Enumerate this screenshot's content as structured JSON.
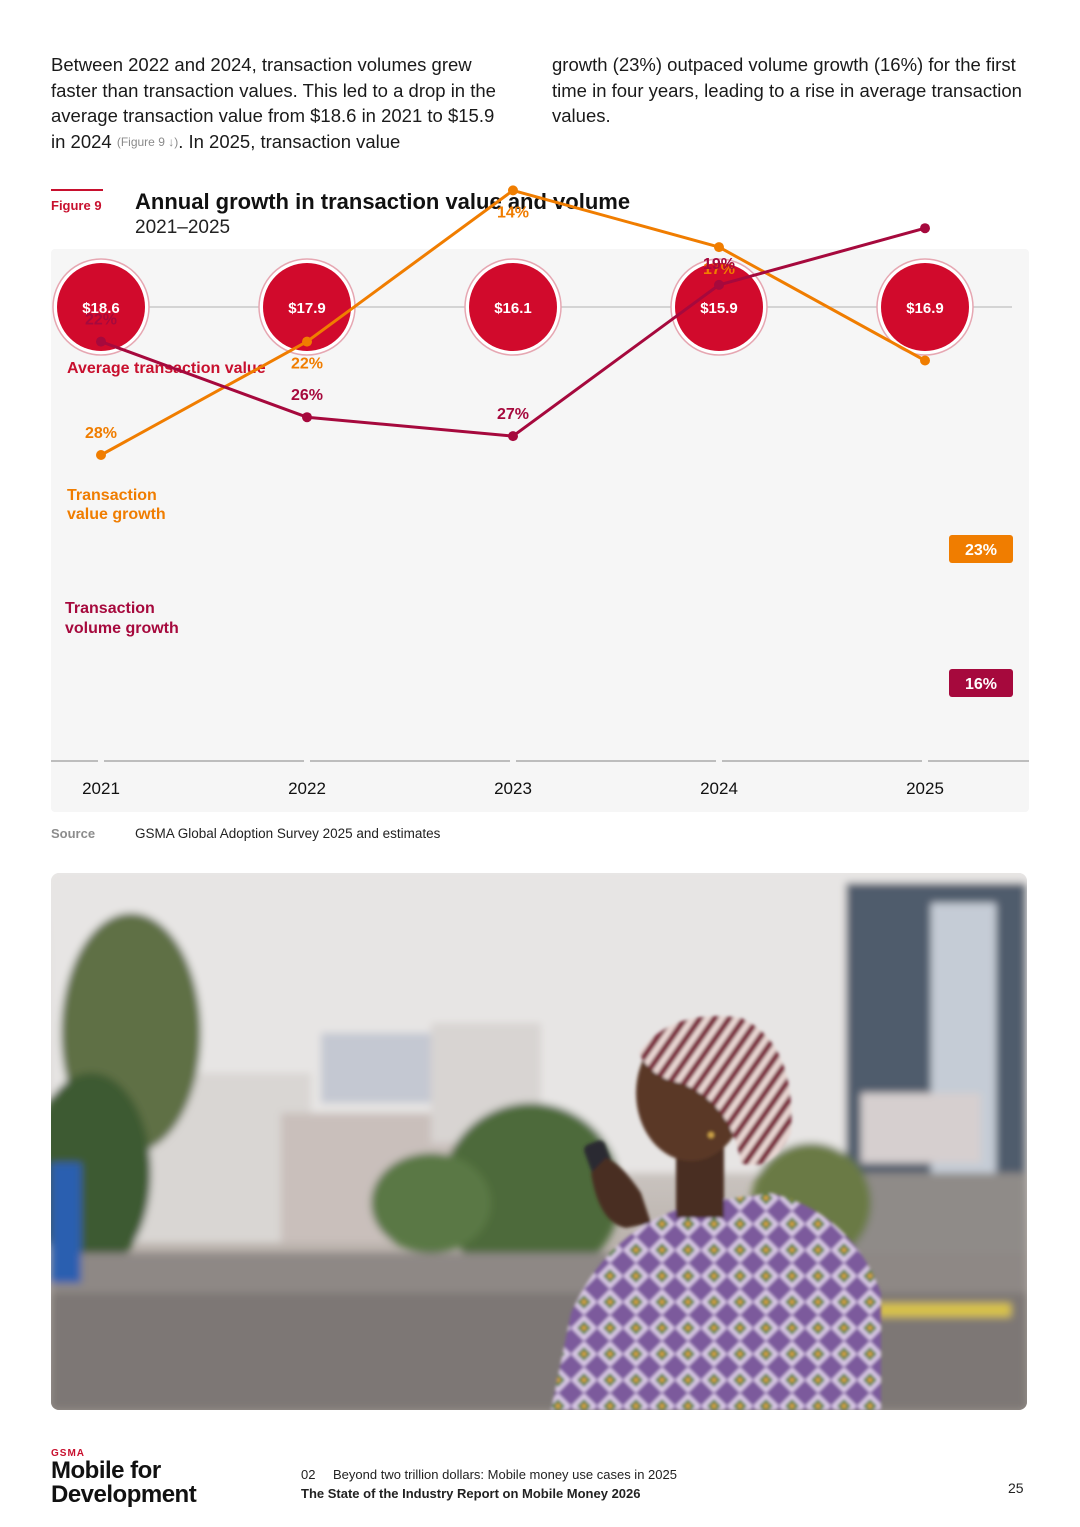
{
  "intro": {
    "left_text_1": "Between 2022 and 2024, transaction volumes grew faster than transaction values. This led to a drop in the average transaction value from $18.6 in 2021 to $15.9 in 2024 ",
    "figure_ref": "(Figure 9 ↓)",
    "left_text_2": ". In 2025, transaction value",
    "right_text": "growth (23%) outpaced volume growth (16%) for the first time in four years, leading to a rise in average transaction values."
  },
  "figure": {
    "number": "Figure 9",
    "title": "Annual growth in transaction value and volume",
    "subtitle": "2021–2025"
  },
  "chart_data": {
    "type": "line",
    "x": [
      "2021",
      "2022",
      "2023",
      "2024",
      "2025"
    ],
    "average_transaction_value": {
      "label": "Average transaction value",
      "values": [
        18.6,
        17.9,
        16.1,
        15.9,
        16.9
      ],
      "labels": [
        "$18.6",
        "$17.9",
        "$16.1",
        "$15.9",
        "$16.9"
      ]
    },
    "series": [
      {
        "name": "Transaction value growth",
        "name_lines": [
          "Transaction",
          "value growth"
        ],
        "values": [
          28,
          22,
          14,
          17,
          23
        ],
        "labels": [
          "28%",
          "22%",
          "14%",
          "17%",
          "23%"
        ],
        "color": "#f07d00"
      },
      {
        "name": "Transaction volume growth",
        "name_lines": [
          "Transaction",
          "volume growth"
        ],
        "values": [
          22,
          26,
          27,
          19,
          16
        ],
        "labels": [
          "22%",
          "26%",
          "27%",
          "19%",
          "16%"
        ],
        "color": "#a6093d"
      }
    ],
    "colors": {
      "circle": "#d10a2c",
      "label_red": "#c8102e",
      "axis": "#bdbdbd"
    }
  },
  "source": {
    "label": "Source",
    "text": "GSMA Global Adoption Survey 2025 and estimates"
  },
  "footer": {
    "logo_small": "GSMA",
    "logo_line1": "Mobile for",
    "logo_line2": "Development",
    "section_number": "02",
    "section_title": "Beyond two trillion dollars: Mobile money use cases in 2025",
    "report_title": "The State of the Industry Report on Mobile Money 2026",
    "page_number": "25"
  }
}
